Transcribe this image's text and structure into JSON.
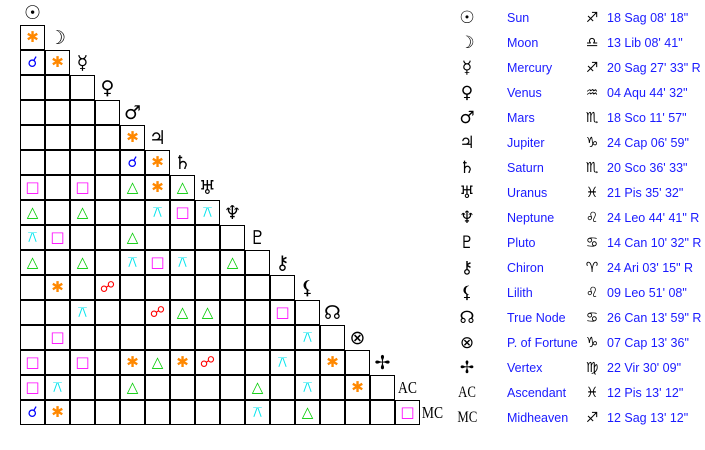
{
  "aspect_colors": {
    "conjunction": "#0000ff",
    "sextile": "#ff8800",
    "square": "#ff00ff",
    "trine": "#00cc00",
    "quincunx": "#00e5ee",
    "opposition": "#ff0000"
  },
  "aspect_glyphs": {
    "conjunction": "☌",
    "sextile": "✱",
    "square": "□",
    "trine": "△",
    "quincunx": "⚻",
    "opposition": "☍"
  },
  "points": [
    {
      "icon": "sun-icon",
      "glyph": "☉",
      "name": "Sun",
      "sign_icon": "sagittarius-icon",
      "sign_glyph": "♐",
      "position": "18 Sag 08' 18\""
    },
    {
      "icon": "moon-icon",
      "glyph": "☽",
      "name": "Moon",
      "sign_icon": "libra-icon",
      "sign_glyph": "♎",
      "position": "13 Lib 08' 41\""
    },
    {
      "icon": "mercury-icon",
      "glyph": "☿",
      "name": "Mercury",
      "sign_icon": "sagittarius-icon",
      "sign_glyph": "♐",
      "position": "20 Sag 27' 33\" R"
    },
    {
      "icon": "venus-icon",
      "glyph": "♀",
      "name": "Venus",
      "sign_icon": "aquarius-icon",
      "sign_glyph": "♒",
      "position": "04 Aqu 44' 32\""
    },
    {
      "icon": "mars-icon",
      "glyph": "♂",
      "name": "Mars",
      "sign_icon": "scorpio-icon",
      "sign_glyph": "♏",
      "position": "18 Sco 11' 57\""
    },
    {
      "icon": "jupiter-icon",
      "glyph": "♃",
      "name": "Jupiter",
      "sign_icon": "capricorn-icon",
      "sign_glyph": "♑",
      "position": "24 Cap 06' 59\""
    },
    {
      "icon": "saturn-icon",
      "glyph": "♄",
      "name": "Saturn",
      "sign_icon": "scorpio-icon",
      "sign_glyph": "♏",
      "position": "20 Sco 36' 33\""
    },
    {
      "icon": "uranus-icon",
      "glyph": "♅",
      "name": "Uranus",
      "sign_icon": "pisces-icon",
      "sign_glyph": "♓",
      "position": "21 Pis 35' 32\""
    },
    {
      "icon": "neptune-icon",
      "glyph": "♆",
      "name": "Neptune",
      "sign_icon": "leo-icon",
      "sign_glyph": "♌",
      "position": "24 Leo 44' 41\" R"
    },
    {
      "icon": "pluto-icon",
      "glyph": "♇",
      "name": "Pluto",
      "sign_icon": "cancer-icon",
      "sign_glyph": "♋",
      "position": "14 Can 10' 32\" R"
    },
    {
      "icon": "chiron-icon",
      "glyph": "⚷",
      "name": "Chiron",
      "sign_icon": "aries-icon",
      "sign_glyph": "♈",
      "position": "24 Ari 03' 15\" R"
    },
    {
      "icon": "lilith-icon",
      "glyph": "⚸",
      "name": "Lilith",
      "sign_icon": "leo-icon",
      "sign_glyph": "♌",
      "position": "09 Leo 51' 08\""
    },
    {
      "icon": "true-node-icon",
      "glyph": "☊",
      "name": "True Node",
      "sign_icon": "cancer-icon",
      "sign_glyph": "♋",
      "position": "26 Can 13' 59\" R"
    },
    {
      "icon": "part-of-fortune-icon",
      "glyph": "⊗",
      "name": "P. of Fortune",
      "sign_icon": "capricorn-icon",
      "sign_glyph": "♑",
      "position": "07 Cap 13' 36\""
    },
    {
      "icon": "vertex-icon",
      "glyph": "✢",
      "name": "Vertex",
      "sign_icon": "virgo-icon",
      "sign_glyph": "♍",
      "position": "22 Vir 30' 09\""
    },
    {
      "icon": "ascendant-icon",
      "glyph": "AC",
      "name": "Ascendant",
      "sign_icon": "pisces-icon",
      "sign_glyph": "♓",
      "position": "12 Pis 13' 12\""
    },
    {
      "icon": "midheaven-icon",
      "glyph": "MC",
      "name": "Midheaven",
      "sign_icon": "sagittarius-icon",
      "sign_glyph": "♐",
      "position": "12 Sag 13' 12\""
    }
  ],
  "aspects": [
    [
      1,
      0,
      "sextile"
    ],
    [
      2,
      0,
      "conjunction"
    ],
    [
      2,
      1,
      "sextile"
    ],
    [
      5,
      4,
      "sextile"
    ],
    [
      6,
      4,
      "conjunction"
    ],
    [
      6,
      5,
      "sextile"
    ],
    [
      7,
      0,
      "square"
    ],
    [
      7,
      2,
      "square"
    ],
    [
      7,
      4,
      "trine"
    ],
    [
      7,
      5,
      "sextile"
    ],
    [
      7,
      6,
      "trine"
    ],
    [
      8,
      0,
      "trine"
    ],
    [
      8,
      2,
      "trine"
    ],
    [
      8,
      5,
      "quincunx"
    ],
    [
      8,
      6,
      "square"
    ],
    [
      8,
      7,
      "quincunx"
    ],
    [
      9,
      0,
      "quincunx"
    ],
    [
      9,
      1,
      "square"
    ],
    [
      9,
      4,
      "trine"
    ],
    [
      10,
      0,
      "trine"
    ],
    [
      10,
      2,
      "trine"
    ],
    [
      10,
      4,
      "quincunx"
    ],
    [
      10,
      5,
      "square"
    ],
    [
      10,
      6,
      "quincunx"
    ],
    [
      10,
      8,
      "trine"
    ],
    [
      11,
      1,
      "sextile"
    ],
    [
      11,
      3,
      "opposition"
    ],
    [
      12,
      2,
      "quincunx"
    ],
    [
      12,
      5,
      "opposition"
    ],
    [
      12,
      6,
      "trine"
    ],
    [
      12,
      7,
      "trine"
    ],
    [
      12,
      10,
      "square"
    ],
    [
      13,
      1,
      "square"
    ],
    [
      13,
      11,
      "quincunx"
    ],
    [
      14,
      0,
      "square"
    ],
    [
      14,
      2,
      "square"
    ],
    [
      14,
      4,
      "sextile"
    ],
    [
      14,
      5,
      "trine"
    ],
    [
      14,
      6,
      "sextile"
    ],
    [
      14,
      7,
      "opposition"
    ],
    [
      14,
      10,
      "quincunx"
    ],
    [
      14,
      12,
      "sextile"
    ],
    [
      15,
      0,
      "square"
    ],
    [
      15,
      1,
      "quincunx"
    ],
    [
      15,
      4,
      "trine"
    ],
    [
      15,
      9,
      "trine"
    ],
    [
      15,
      11,
      "quincunx"
    ],
    [
      15,
      13,
      "sextile"
    ],
    [
      16,
      0,
      "conjunction"
    ],
    [
      16,
      1,
      "sextile"
    ],
    [
      16,
      9,
      "quincunx"
    ],
    [
      16,
      11,
      "trine"
    ],
    [
      16,
      15,
      "square"
    ]
  ]
}
